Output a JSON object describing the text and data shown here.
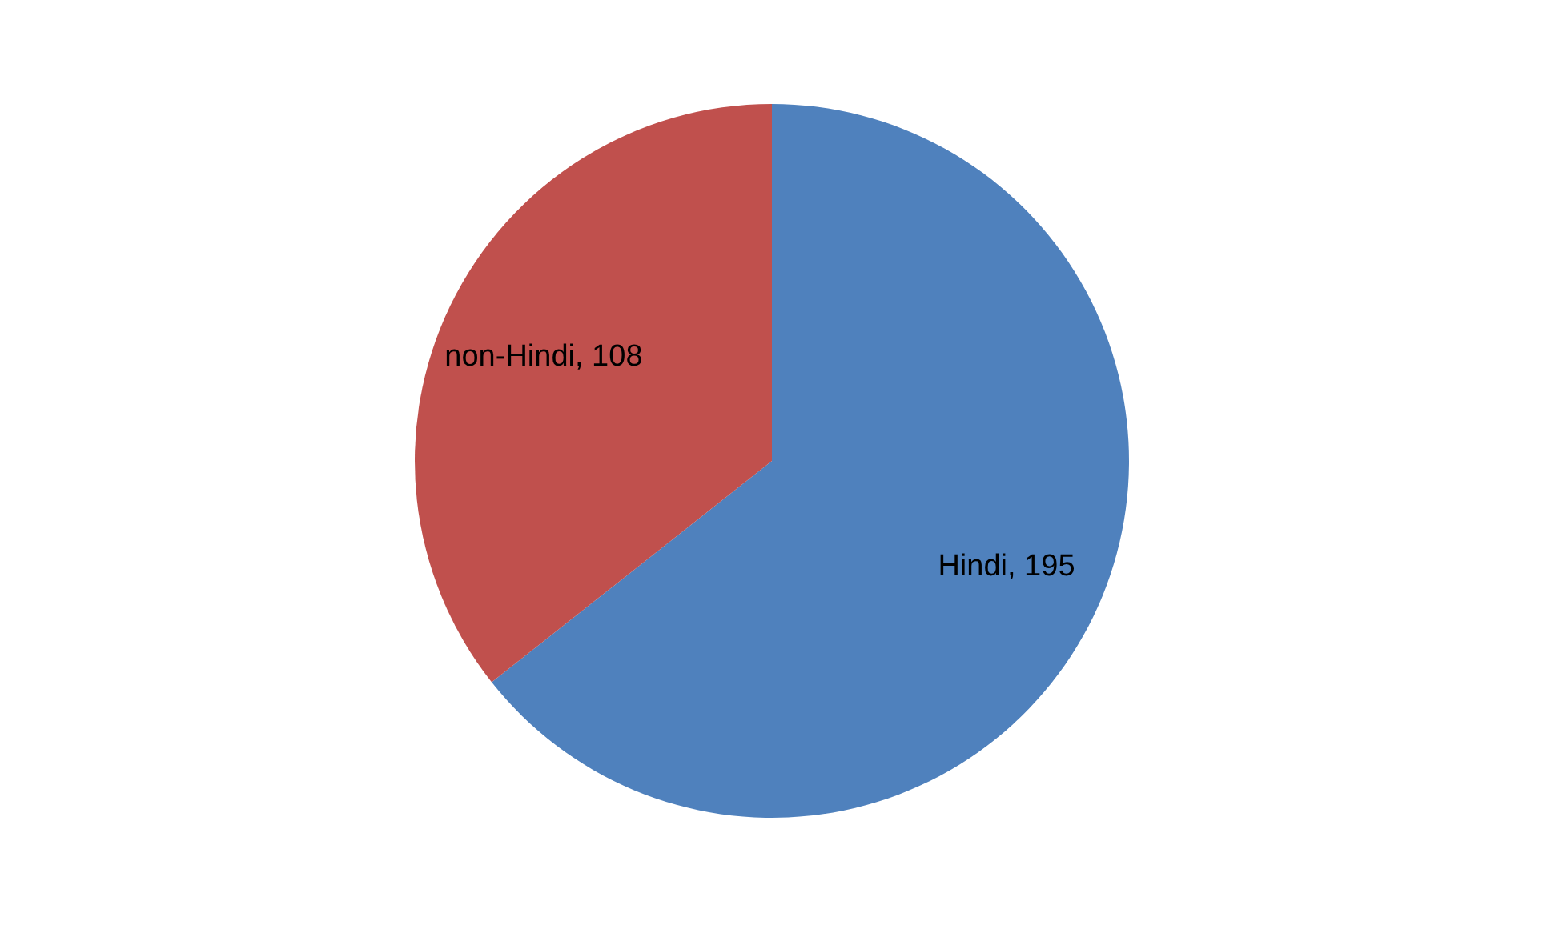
{
  "chart_data": {
    "type": "pie",
    "categories": [
      "Hindi",
      "non-Hindi"
    ],
    "values": [
      195,
      108
    ],
    "value_labels": [
      ", 195",
      ", 108"
    ],
    "colors": [
      "#4f81bd",
      "#c0504d"
    ],
    "legend": false
  }
}
